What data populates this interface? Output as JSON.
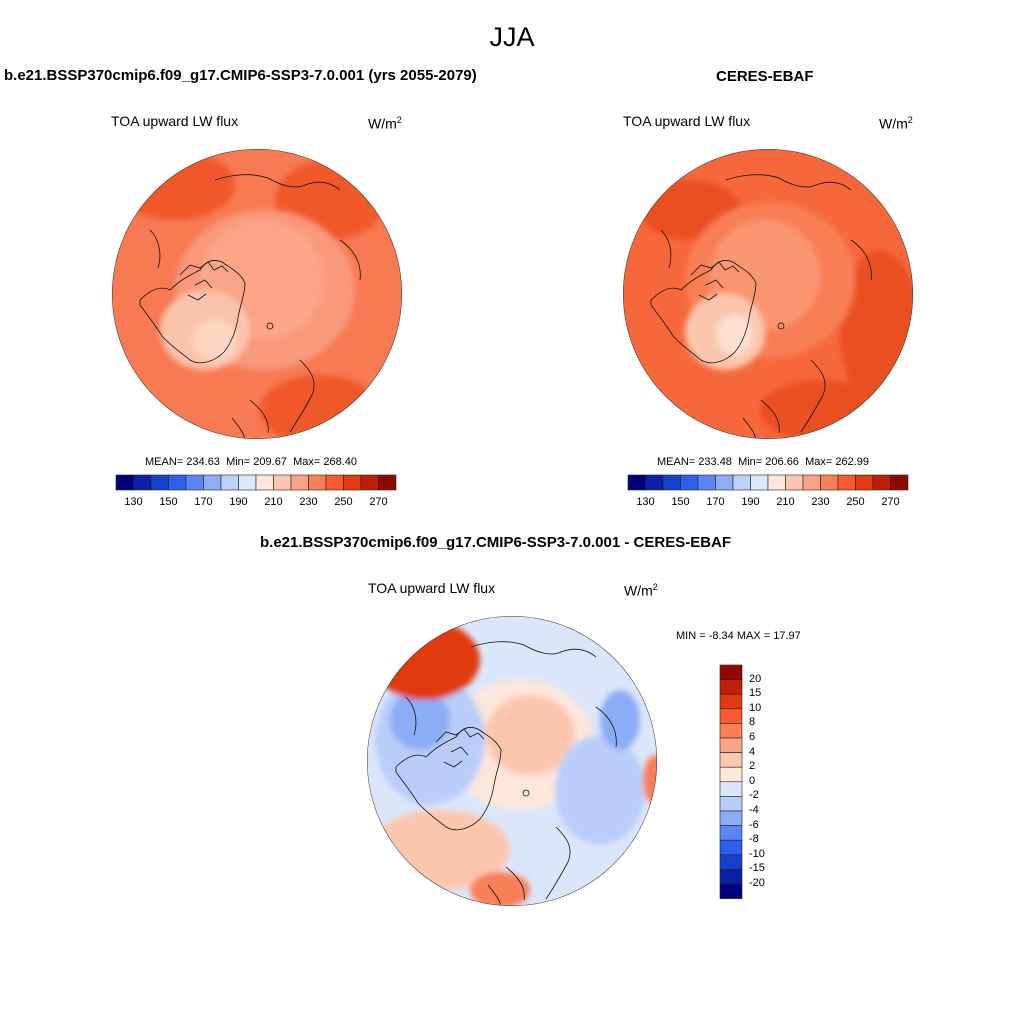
{
  "season": "JJA",
  "panels": [
    {
      "title": "b.e21.BSSP370cmip6.f09_g17.CMIP6-SSP3-7.0.001 (yrs 2055-2079)",
      "variable": "TOA upward LW flux",
      "unit": "W/m",
      "unit_exp": "2",
      "stats": {
        "mean_label": "MEAN=",
        "mean": "234.63",
        "min_label": "Min=",
        "min": "209.67",
        "max_label": "Max=",
        "max": "268.40"
      }
    },
    {
      "title": "CERES-EBAF",
      "variable": "TOA upward LW flux",
      "unit": "W/m",
      "unit_exp": "2",
      "stats": {
        "mean_label": "MEAN=",
        "mean": "233.48",
        "min_label": "Min=",
        "min": "206.66",
        "max_label": "Max=",
        "max": "262.99"
      }
    },
    {
      "title": "b.e21.BSSP370cmip6.f09_g17.CMIP6-SSP3-7.0.001 - CERES-EBAF",
      "variable": "TOA upward LW flux",
      "unit": "W/m",
      "unit_exp": "2",
      "stats_text": "MIN =  -8.34 MAX =  17.97"
    }
  ],
  "colorbar_abs": {
    "colors": [
      "#00007a",
      "#0a1fa6",
      "#1440cc",
      "#2e5ff0",
      "#5a86f5",
      "#8dadf7",
      "#bcd1fa",
      "#dde8fc",
      "#fde6da",
      "#fcc6ae",
      "#fba283",
      "#fa7f57",
      "#f75a2e",
      "#e63a12",
      "#c21d08",
      "#8e0a00"
    ],
    "ticks": [
      "130",
      "150",
      "170",
      "190",
      "210",
      "230",
      "250",
      "270"
    ]
  },
  "colorbar_diff": {
    "colors": [
      "#8e0a00",
      "#bf2108",
      "#e13a10",
      "#f75a2e",
      "#f97f56",
      "#fba484",
      "#fdc8b0",
      "#fde6da",
      "#dbe6fb",
      "#b9cdfa",
      "#8bacf6",
      "#5a86f5",
      "#2e5ff0",
      "#1440cc",
      "#0a1fa6",
      "#00007a"
    ],
    "ticks": [
      "20",
      "15",
      "10",
      "8",
      "6",
      "4",
      "2",
      "0",
      "-2",
      "-4",
      "-6",
      "-8",
      "-10",
      "-15",
      "-20"
    ]
  },
  "map_colors": {
    "panel1": {
      "base": "#f77a52",
      "mid": "#f9987a",
      "pole": "#fba486",
      "ice": "#fcc3ab",
      "icecore": "#fdd6c2",
      "warm": "#f0582c"
    },
    "panel2": {
      "base": "#f7673c",
      "mid": "#f87f55",
      "pole": "#fa9572",
      "ice": "#fcc6ae",
      "icecore": "#fde0d2",
      "warm": "#ea4f22"
    },
    "diff": {
      "base": "#dbe6fb",
      "neutral": "#fde6da",
      "pos": "#fcc6ae",
      "neg": "#b9cdfa",
      "neg2": "#8bacf6",
      "strongpos": "#e13a10",
      "pos2": "#f97f56"
    }
  }
}
